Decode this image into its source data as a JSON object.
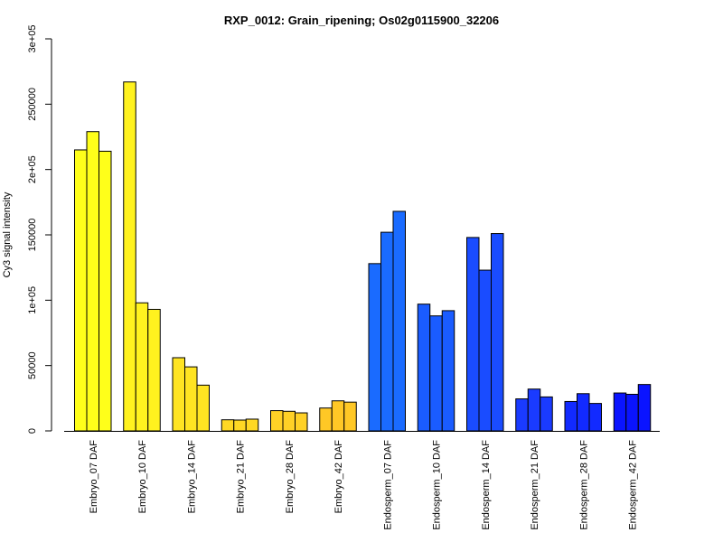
{
  "chart_data": {
    "type": "bar",
    "title": "RXP_0012: Grain_ripening; Os02g0115900_32206",
    "xlabel": "",
    "ylabel": "Cy3 signal intensity",
    "ylim": [
      0,
      300000
    ],
    "yticks": [
      {
        "value": 0,
        "label": "0"
      },
      {
        "value": 50000,
        "label": "50000"
      },
      {
        "value": 100000,
        "label": "1e+05"
      },
      {
        "value": 150000,
        "label": "150000"
      },
      {
        "value": 200000,
        "label": "2e+05"
      },
      {
        "value": 250000,
        "label": "250000"
      },
      {
        "value": 300000,
        "label": "3e+05"
      }
    ],
    "grid": false,
    "legend": "none",
    "groups": [
      {
        "label": "Embryo_07 DAF",
        "color": "#ffff1a",
        "values": [
          215000,
          229000,
          214000
        ]
      },
      {
        "label": "Embryo_10 DAF",
        "color": "#fff21f",
        "values": [
          267000,
          98000,
          93000
        ]
      },
      {
        "label": "Embryo_14 DAF",
        "color": "#ffe422",
        "values": [
          56000,
          49000,
          35000
        ]
      },
      {
        "label": "Embryo_21 DAF",
        "color": "#ffd824",
        "values": [
          8500,
          8300,
          9000
        ]
      },
      {
        "label": "Embryo_28 DAF",
        "color": "#ffd126",
        "values": [
          15500,
          15000,
          13800
        ]
      },
      {
        "label": "Embryo_42 DAF",
        "color": "#ffc826",
        "values": [
          17500,
          23000,
          22000
        ]
      },
      {
        "label": "Endosperm_07 DAF",
        "color": "#1a6bff",
        "values": [
          128000,
          152000,
          168000
        ]
      },
      {
        "label": "Endosperm_10 DAF",
        "color": "#1a5cff",
        "values": [
          97000,
          88000,
          92000
        ]
      },
      {
        "label": "Endosperm_14 DAF",
        "color": "#1a4cff",
        "values": [
          148000,
          123000,
          151000
        ]
      },
      {
        "label": "Endosperm_21 DAF",
        "color": "#1a3bff",
        "values": [
          24500,
          32000,
          26000
        ]
      },
      {
        "label": "Endosperm_28 DAF",
        "color": "#122aff",
        "values": [
          22500,
          28500,
          21000
        ]
      },
      {
        "label": "Endosperm_42 DAF",
        "color": "#0a14ff",
        "values": [
          29000,
          28000,
          35500
        ]
      }
    ]
  }
}
